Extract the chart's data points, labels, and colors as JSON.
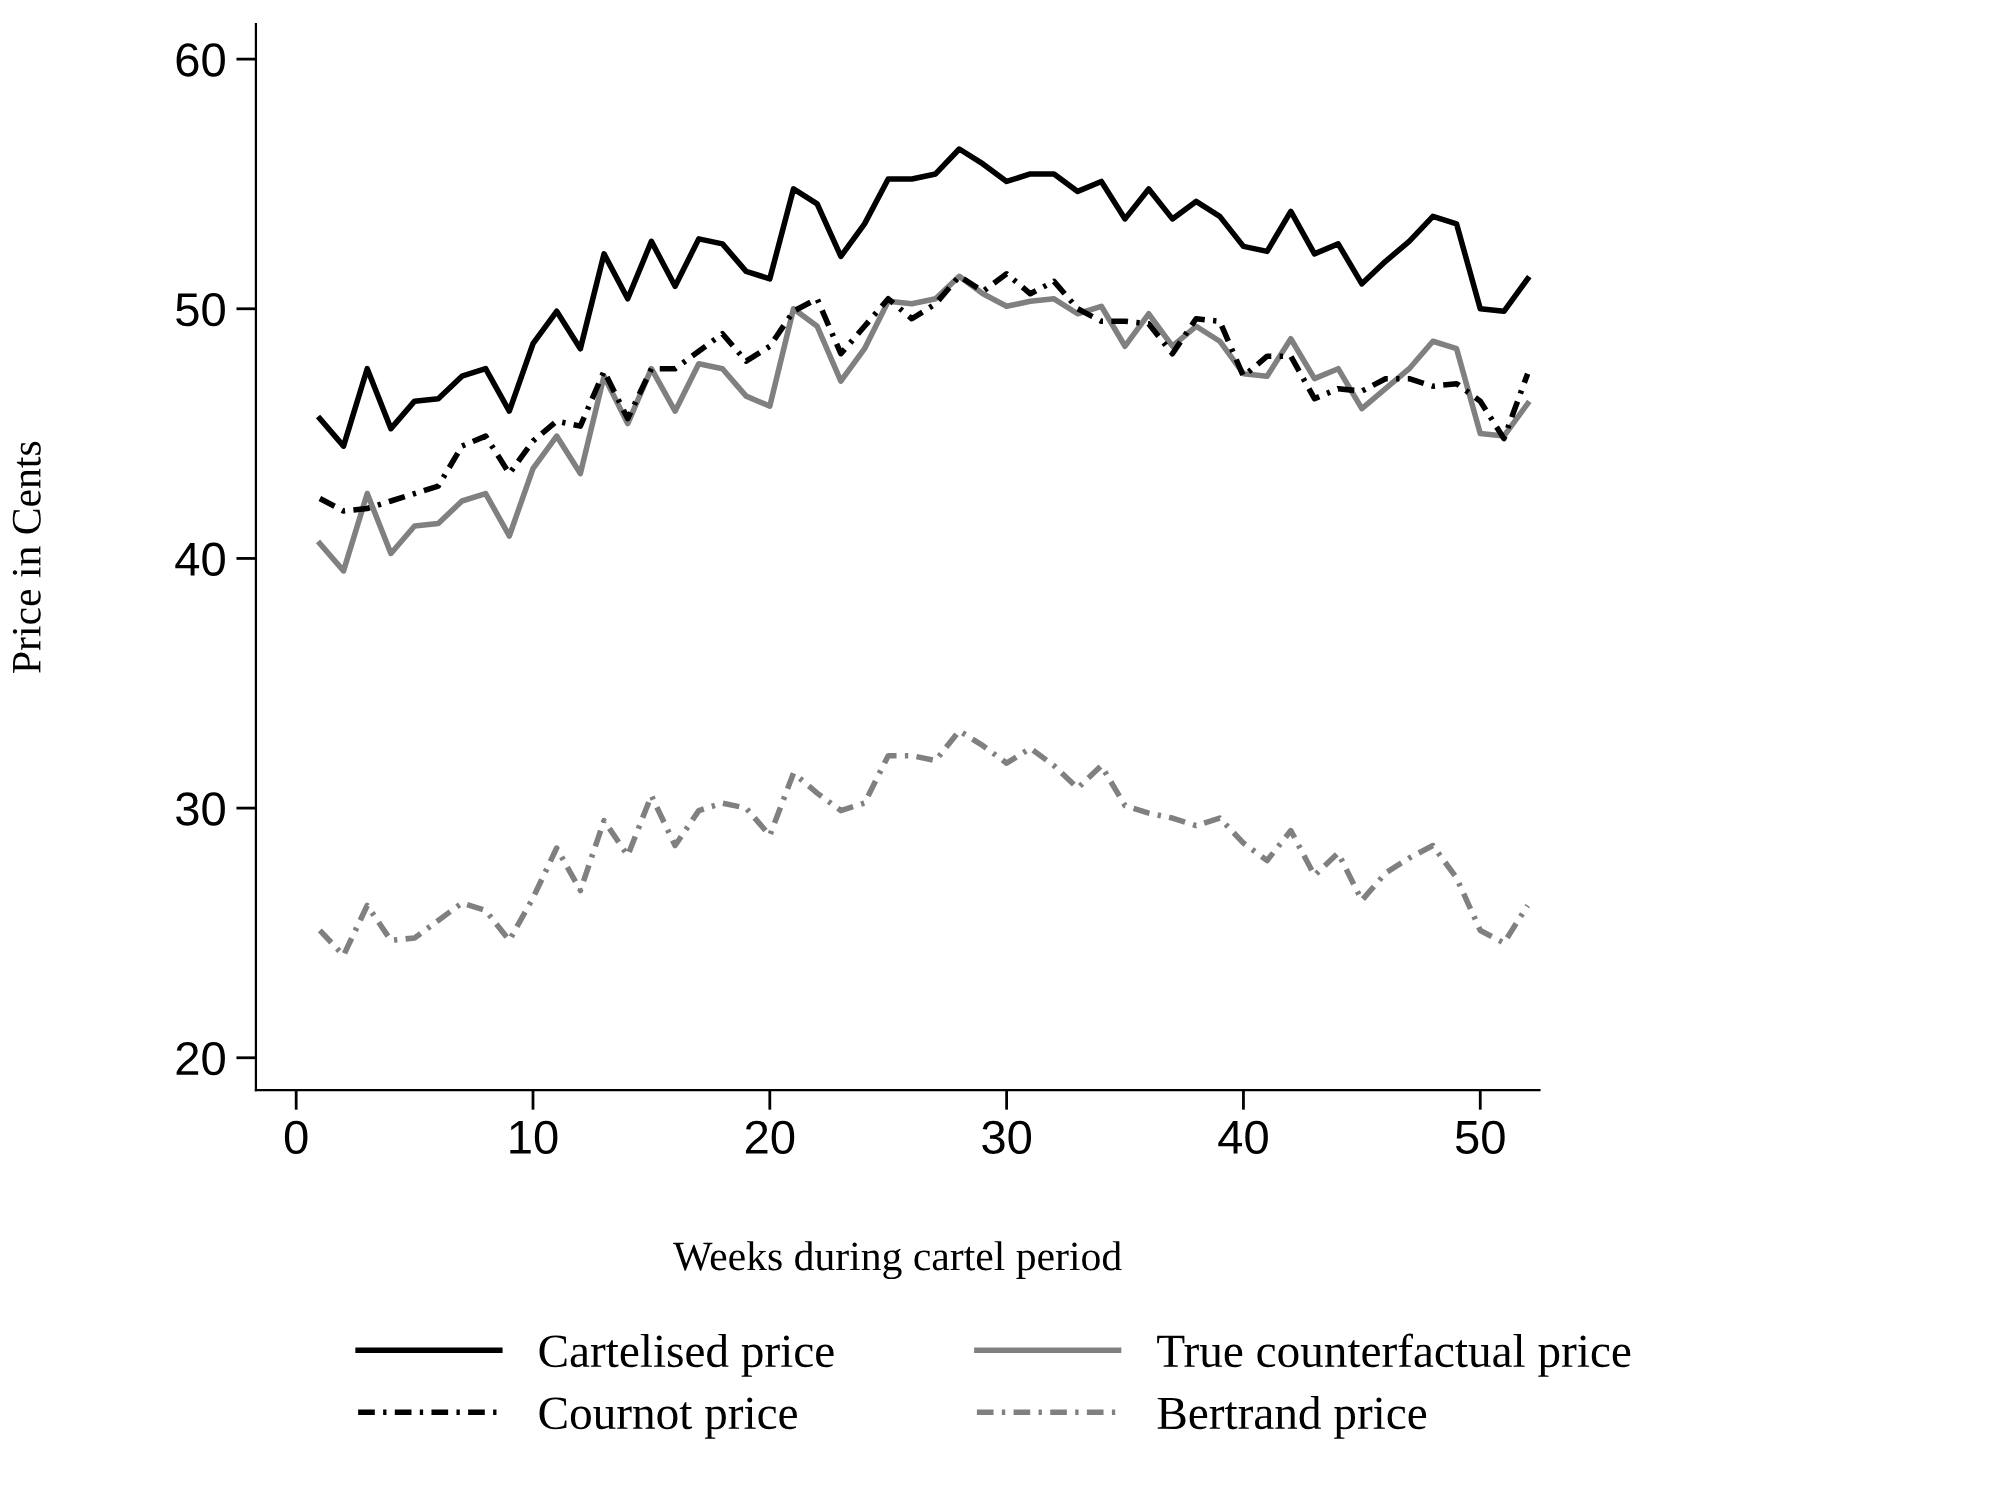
{
  "chart_data": {
    "type": "line",
    "xlabel": "Weeks during cartel period",
    "ylabel": "Price in Cents",
    "x": [
      1,
      2,
      3,
      4,
      5,
      6,
      7,
      8,
      9,
      10,
      11,
      12,
      13,
      14,
      15,
      16,
      17,
      18,
      19,
      20,
      21,
      22,
      23,
      24,
      25,
      26,
      27,
      28,
      29,
      30,
      31,
      32,
      33,
      34,
      35,
      36,
      37,
      38,
      39,
      40,
      41,
      42,
      43,
      44,
      45,
      46,
      47,
      48,
      49,
      50,
      51,
      52
    ],
    "xlim": [
      -1.7,
      52.5
    ],
    "xticks": [
      0,
      10,
      20,
      30,
      40,
      50
    ],
    "ylim": [
      18.7,
      61.4
    ],
    "yticks": [
      20,
      30,
      40,
      50,
      60
    ],
    "grid": false,
    "legend": "bottom",
    "marker": "none",
    "series": [
      {
        "name": "Cartelised price",
        "color": "#000000",
        "line_style": "solid",
        "values": [
          45.6,
          44.5,
          47.6,
          45.2,
          46.3,
          46.4,
          47.3,
          47.6,
          45.9,
          48.6,
          49.9,
          48.4,
          52.2,
          50.4,
          52.7,
          50.9,
          52.8,
          52.6,
          51.5,
          51.2,
          54.8,
          54.2,
          52.1,
          53.4,
          55.2,
          55.2,
          55.4,
          56.4,
          55.8,
          55.1,
          55.4,
          55.4,
          54.7,
          55.1,
          53.6,
          54.8,
          53.6,
          54.3,
          53.7,
          52.5,
          52.3,
          53.9,
          52.2,
          52.6,
          51.0,
          51.9,
          52.7,
          53.7,
          53.4,
          50.0,
          49.9,
          51.2
        ]
      },
      {
        "name": "True counterfactual price",
        "color": "#808080",
        "line_style": "solid",
        "values": [
          40.6,
          39.5,
          42.6,
          40.2,
          41.3,
          41.4,
          42.3,
          42.6,
          40.9,
          43.6,
          44.9,
          43.4,
          47.3,
          45.4,
          47.6,
          45.9,
          47.8,
          47.6,
          46.5,
          46.1,
          50.0,
          49.3,
          47.1,
          48.4,
          50.3,
          50.2,
          50.4,
          51.3,
          50.6,
          50.1,
          50.3,
          50.4,
          49.8,
          50.1,
          48.5,
          49.8,
          48.5,
          49.3,
          48.7,
          47.4,
          47.3,
          48.8,
          47.2,
          47.6,
          46.0,
          46.8,
          47.6,
          48.7,
          48.4,
          45.0,
          44.9,
          46.2
        ]
      },
      {
        "name": "Cournot price",
        "color": "#000000",
        "line_style": "dashdot",
        "values": [
          42.4,
          41.9,
          42.0,
          42.3,
          42.6,
          42.9,
          44.5,
          44.9,
          43.4,
          44.7,
          45.5,
          45.3,
          47.5,
          45.6,
          47.6,
          47.6,
          48.3,
          49.0,
          47.9,
          48.5,
          49.9,
          50.4,
          48.2,
          49.3,
          50.4,
          49.6,
          50.2,
          51.3,
          50.7,
          51.4,
          50.6,
          51.1,
          50.0,
          49.5,
          49.5,
          49.4,
          48.2,
          49.6,
          49.5,
          47.3,
          48.1,
          48.1,
          46.4,
          46.8,
          46.7,
          47.2,
          47.2,
          46.9,
          47.0,
          46.3,
          44.8,
          47.4
        ]
      },
      {
        "name": "Bertrand price",
        "color": "#808080",
        "line_style": "dashdot",
        "values": [
          25.1,
          24.1,
          26.1,
          24.7,
          24.8,
          25.5,
          26.2,
          25.9,
          24.7,
          26.4,
          28.4,
          26.7,
          29.5,
          28.1,
          30.5,
          28.5,
          29.9,
          30.2,
          30.0,
          28.9,
          31.4,
          30.6,
          29.9,
          30.2,
          32.1,
          32.1,
          31.9,
          33.1,
          32.5,
          31.8,
          32.4,
          31.7,
          30.8,
          31.7,
          30.1,
          29.8,
          29.6,
          29.3,
          29.6,
          28.6,
          27.9,
          29.1,
          27.3,
          28.2,
          26.3,
          27.4,
          28.0,
          28.5,
          27.2,
          25.1,
          24.6,
          26.1
        ]
      }
    ]
  }
}
